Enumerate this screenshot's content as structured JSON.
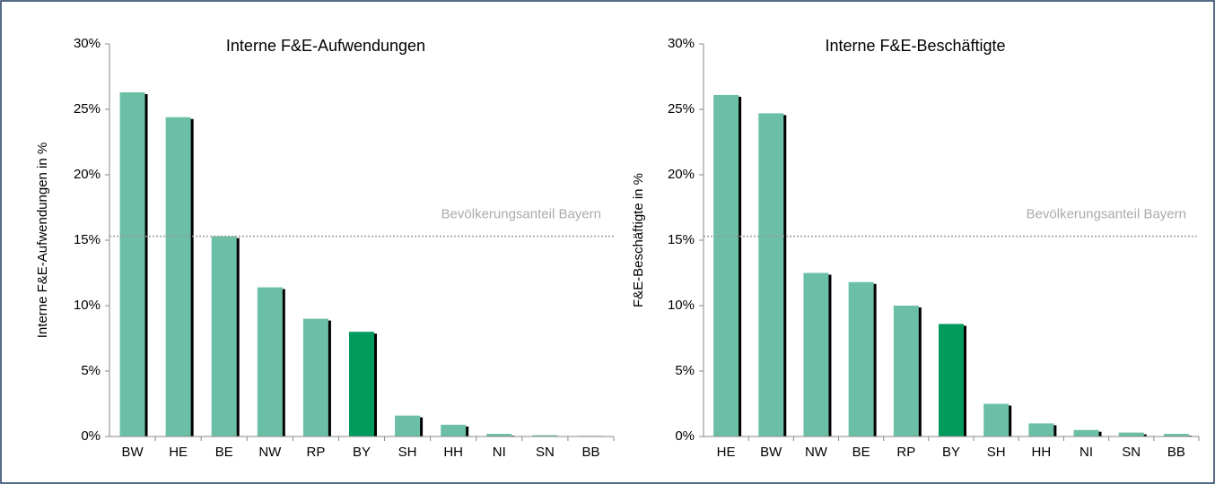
{
  "chart_data": [
    {
      "type": "bar",
      "title": "Interne F&E-Aufwendungen",
      "y_label": "Interne F&E-Aufwendungen in %",
      "categories": [
        "BW",
        "HE",
        "BE",
        "NW",
        "RP",
        "BY",
        "SH",
        "HH",
        "NI",
        "SN",
        "BB"
      ],
      "values": [
        26.3,
        24.4,
        15.3,
        11.4,
        9.0,
        8.0,
        1.6,
        0.9,
        0.2,
        0.1,
        0.05
      ],
      "colors": [
        "#6cbfa7",
        "#6cbfa7",
        "#6cbfa7",
        "#6cbfa7",
        "#6cbfa7",
        "#009a5c",
        "#6cbfa7",
        "#6cbfa7",
        "#6cbfa7",
        "#6cbfa7",
        "#6cbfa7"
      ],
      "ylim": [
        0,
        30
      ],
      "yticks": [
        {
          "value": 0,
          "label": "0%"
        },
        {
          "value": 5,
          "label": "5%"
        },
        {
          "value": 10,
          "label": "10%"
        },
        {
          "value": 15,
          "label": "15%"
        },
        {
          "value": 20,
          "label": "20%"
        },
        {
          "value": 25,
          "label": "25%"
        },
        {
          "value": 30,
          "label": "30%"
        }
      ],
      "reference_line": {
        "value": 15.3,
        "label": "Bevölkerungsanteil Bayern"
      }
    },
    {
      "type": "bar",
      "title": "Interne F&E-Beschäftigte",
      "y_label": "F&E-Beschäftigte in %",
      "categories": [
        "HE",
        "BW",
        "NW",
        "BE",
        "RP",
        "BY",
        "SH",
        "HH",
        "NI",
        "SN",
        "BB"
      ],
      "values": [
        26.1,
        24.7,
        12.5,
        11.8,
        10.0,
        8.6,
        2.5,
        1.0,
        0.5,
        0.3,
        0.2
      ],
      "colors": [
        "#6cbfa7",
        "#6cbfa7",
        "#6cbfa7",
        "#6cbfa7",
        "#6cbfa7",
        "#009a5c",
        "#6cbfa7",
        "#6cbfa7",
        "#6cbfa7",
        "#6cbfa7",
        "#6cbfa7"
      ],
      "ylim": [
        0,
        30
      ],
      "yticks": [
        {
          "value": 0,
          "label": "0%"
        },
        {
          "value": 5,
          "label": "5%"
        },
        {
          "value": 10,
          "label": "10%"
        },
        {
          "value": 15,
          "label": "15%"
        },
        {
          "value": 20,
          "label": "20%"
        },
        {
          "value": 25,
          "label": "25%"
        },
        {
          "value": 30,
          "label": "30%"
        }
      ],
      "reference_line": {
        "value": 15.3,
        "label": "Bevölkerungsanteil Bayern"
      }
    }
  ]
}
